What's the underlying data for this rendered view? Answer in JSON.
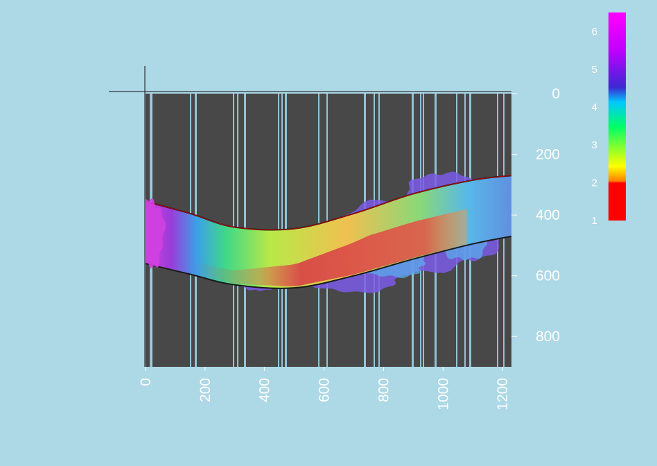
{
  "chart_data": {
    "type": "heatmap",
    "title": "",
    "xlabel": "",
    "ylabel": "",
    "x_ticks": [
      "0",
      "200",
      "400",
      "600",
      "800",
      "1000",
      "1200"
    ],
    "y_ticks": [
      "0",
      "200",
      "400",
      "600",
      "800"
    ],
    "xlim": [
      0,
      1230
    ],
    "ylim": [
      0,
      900
    ],
    "y_inverted": true,
    "colorbar": {
      "ticks": [
        "1",
        "2",
        "3",
        "4",
        "5",
        "6"
      ],
      "range": [
        1,
        6.5
      ],
      "colormap": [
        "#ff0000",
        "#ffff00",
        "#00ff66",
        "#00c8ff",
        "#3c28d2",
        "#ff00ff"
      ]
    },
    "channel": {
      "upper_wall": [
        [
          0,
          355
        ],
        [
          150,
          395
        ],
        [
          300,
          440
        ],
        [
          500,
          445
        ],
        [
          700,
          395
        ],
        [
          900,
          330
        ],
        [
          1100,
          285
        ],
        [
          1230,
          270
        ]
      ],
      "lower_wall": [
        [
          0,
          560
        ],
        [
          150,
          595
        ],
        [
          300,
          630
        ],
        [
          500,
          640
        ],
        [
          700,
          600
        ],
        [
          900,
          545
        ],
        [
          1100,
          495
        ],
        [
          1230,
          470
        ]
      ]
    },
    "colors": {
      "background": "#add8e6",
      "plot_background": "#484848",
      "wall_line": "#1a1a1a",
      "upper_wall_edge": "#cc0000"
    }
  }
}
